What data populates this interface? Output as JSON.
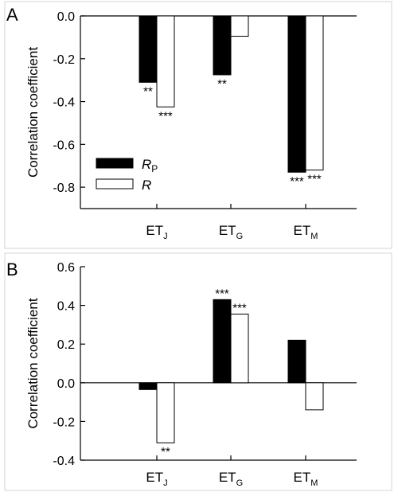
{
  "chart_data": [
    {
      "type": "bar",
      "panel_label": "A",
      "ylabel": "Correlation coefficient",
      "ylim": [
        -0.9,
        0.0
      ],
      "yticks": [
        0.0,
        -0.2,
        -0.4,
        -0.6,
        -0.8
      ],
      "ytick_labels": [
        "0.0",
        "-0.2",
        "-0.4",
        "-0.6",
        "-0.8"
      ],
      "categories": [
        {
          "main": "ET",
          "sub": "J"
        },
        {
          "main": "ET",
          "sub": "G"
        },
        {
          "main": "ET",
          "sub": "M"
        }
      ],
      "series": [
        {
          "name": "R",
          "name_sub": "P",
          "fill": "#000000",
          "values": [
            -0.31,
            -0.275,
            -0.73
          ],
          "significance": [
            "**",
            "**",
            "***"
          ]
        },
        {
          "name": "R",
          "name_sub": "",
          "fill": "#ffffff",
          "values": [
            -0.425,
            -0.095,
            -0.72
          ],
          "significance": [
            "***",
            "",
            "***"
          ]
        }
      ],
      "legend": {
        "show": true,
        "placement": "lower-left"
      }
    },
    {
      "type": "bar",
      "panel_label": "B",
      "ylabel": "Correlation coefficient",
      "ylim": [
        -0.4,
        0.6
      ],
      "yticks": [
        0.6,
        0.4,
        0.2,
        0.0,
        -0.2,
        -0.4
      ],
      "ytick_labels": [
        "0.6",
        "0.4",
        "0.2",
        "0.0",
        "-0.2",
        "-0.4"
      ],
      "categories": [
        {
          "main": "ET",
          "sub": "J"
        },
        {
          "main": "ET",
          "sub": "G"
        },
        {
          "main": "ET",
          "sub": "M"
        }
      ],
      "series": [
        {
          "name": "R",
          "name_sub": "P",
          "fill": "#000000",
          "values": [
            -0.035,
            0.43,
            0.22
          ],
          "significance": [
            "",
            "***",
            ""
          ]
        },
        {
          "name": "R",
          "name_sub": "",
          "fill": "#ffffff",
          "values": [
            -0.31,
            0.355,
            -0.14
          ],
          "significance": [
            "**",
            "***",
            ""
          ]
        }
      ],
      "legend": {
        "show": false
      }
    }
  ]
}
